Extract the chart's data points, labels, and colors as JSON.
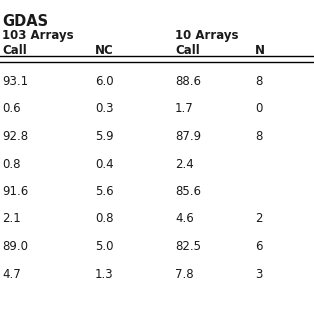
{
  "title": "GDAS",
  "header_row1_left": "103 Arrays",
  "header_row1_right": "10 Arrays",
  "header_row2": [
    "Call",
    "NC",
    "Call",
    "N"
  ],
  "rows": [
    [
      "93.1",
      "6.0",
      "88.6",
      "8"
    ],
    [
      "0.6",
      "0.3",
      "1.7",
      "0"
    ],
    [
      "92.8",
      "5.9",
      "87.9",
      "8"
    ],
    [
      "0.8",
      "0.4",
      "2.4",
      ""
    ],
    [
      "91.6",
      "5.6",
      "85.6",
      ""
    ],
    [
      "2.1",
      "0.8",
      "4.6",
      "2"
    ],
    [
      "89.0",
      "5.0",
      "82.5",
      "6"
    ],
    [
      "4.7",
      "1.3",
      "7.8",
      "3"
    ]
  ],
  "background_color": "#ffffff",
  "text_color": "#1a1a1a",
  "font_size": 8.5,
  "title_font_size": 9.5,
  "fig_width": 3.14,
  "fig_height": 3.14,
  "dpi": 100
}
